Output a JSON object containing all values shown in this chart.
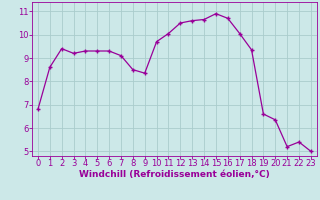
{
  "x": [
    0,
    1,
    2,
    3,
    4,
    5,
    6,
    7,
    8,
    9,
    10,
    11,
    12,
    13,
    14,
    15,
    16,
    17,
    18,
    19,
    20,
    21,
    22,
    23
  ],
  "y": [
    6.8,
    8.6,
    9.4,
    9.2,
    9.3,
    9.3,
    9.3,
    9.1,
    8.5,
    8.35,
    9.7,
    10.05,
    10.5,
    10.6,
    10.65,
    10.9,
    10.7,
    10.05,
    9.35,
    6.6,
    6.35,
    5.2,
    5.4,
    5.0
  ],
  "line_color": "#990099",
  "marker": "+",
  "marker_size": 3,
  "bg_color": "#cce8e8",
  "grid_color": "#aacccc",
  "xlabel": "Windchill (Refroidissement éolien,°C)",
  "xlabel_color": "#990099",
  "tick_color": "#990099",
  "ylim": [
    4.8,
    11.4
  ],
  "xlim": [
    -0.5,
    23.5
  ],
  "yticks": [
    5,
    6,
    7,
    8,
    9,
    10,
    11
  ],
  "xticks": [
    0,
    1,
    2,
    3,
    4,
    5,
    6,
    7,
    8,
    9,
    10,
    11,
    12,
    13,
    14,
    15,
    16,
    17,
    18,
    19,
    20,
    21,
    22,
    23
  ],
  "tick_fontsize": 6,
  "xlabel_fontsize": 6.5
}
